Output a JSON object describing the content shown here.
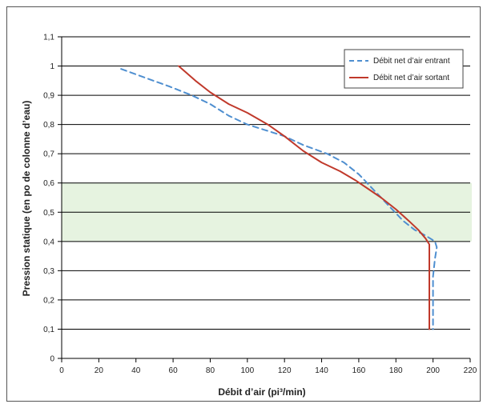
{
  "chart_data": {
    "type": "line",
    "title": "",
    "xlabel": "Débit d’air (pi³/min)",
    "ylabel": "Pression statique (en po de colonne d’eau)",
    "xlim": [
      0,
      220
    ],
    "ylim": [
      0,
      1.1
    ],
    "x_ticks": [
      0,
      20,
      40,
      60,
      80,
      100,
      120,
      140,
      160,
      180,
      200,
      220
    ],
    "y_ticks": [
      0,
      0.1,
      0.2,
      0.3,
      0.4,
      0.5,
      0.6,
      0.7,
      0.8,
      0.9,
      1,
      1.1
    ],
    "x_tick_labels": [
      "0",
      "20",
      "40",
      "60",
      "80",
      "100",
      "120",
      "140",
      "160",
      "180",
      "200",
      "220"
    ],
    "y_tick_labels": [
      "0",
      "0,1",
      "0,2",
      "0,3",
      "0,4",
      "0,5",
      "0,6",
      "0,7",
      "0,8",
      "0,9",
      "1",
      "1,1"
    ],
    "grid": "horizontal",
    "legend_position": "top-right",
    "shaded_band": {
      "y_from": 0.4,
      "y_to": 0.6,
      "color": "#e6f3e0"
    },
    "series": [
      {
        "name": "Débit net d’air entrant",
        "color": "#4f8fd0",
        "style": "dashed",
        "points": [
          [
            32,
            0.99
          ],
          [
            45,
            0.96
          ],
          [
            58,
            0.93
          ],
          [
            70,
            0.9
          ],
          [
            80,
            0.87
          ],
          [
            90,
            0.83
          ],
          [
            100,
            0.8
          ],
          [
            110,
            0.78
          ],
          [
            120,
            0.76
          ],
          [
            130,
            0.73
          ],
          [
            143,
            0.7
          ],
          [
            152,
            0.67
          ],
          [
            160,
            0.63
          ],
          [
            166,
            0.59
          ],
          [
            172,
            0.55
          ],
          [
            178,
            0.51
          ],
          [
            184,
            0.47
          ],
          [
            190,
            0.44
          ],
          [
            196,
            0.42
          ],
          [
            201,
            0.4
          ],
          [
            202,
            0.38
          ],
          [
            201,
            0.34
          ],
          [
            200,
            0.28
          ],
          [
            200,
            0.2
          ],
          [
            200,
            0.1
          ]
        ]
      },
      {
        "name": "Débit net d’air sortant",
        "color": "#c0392b",
        "style": "solid",
        "points": [
          [
            63,
            1.0
          ],
          [
            72,
            0.95
          ],
          [
            80,
            0.91
          ],
          [
            90,
            0.87
          ],
          [
            100,
            0.84
          ],
          [
            111,
            0.8
          ],
          [
            120,
            0.76
          ],
          [
            130,
            0.71
          ],
          [
            140,
            0.67
          ],
          [
            150,
            0.64
          ],
          [
            158,
            0.61
          ],
          [
            165,
            0.58
          ],
          [
            172,
            0.55
          ],
          [
            180,
            0.51
          ],
          [
            187,
            0.47
          ],
          [
            192,
            0.44
          ],
          [
            196,
            0.41
          ],
          [
            198,
            0.39
          ],
          [
            198,
            0.35
          ],
          [
            198,
            0.3
          ],
          [
            198,
            0.2
          ],
          [
            198,
            0.1
          ]
        ]
      }
    ]
  }
}
